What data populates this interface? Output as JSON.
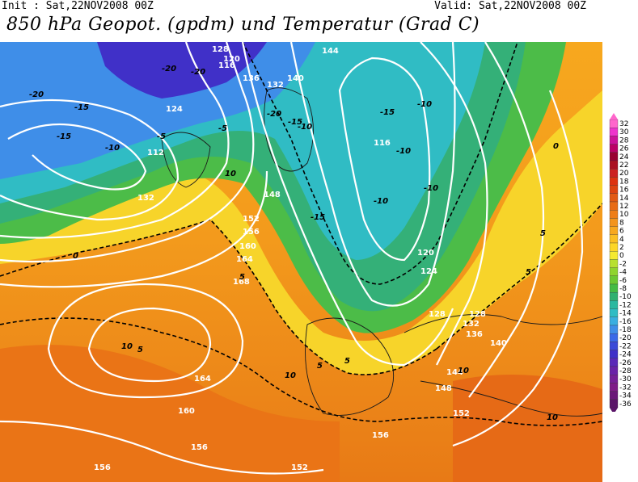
{
  "header": {
    "init": "Init : Sat,22NOV2008 00Z",
    "valid": "Valid: Sat,22NOV2008 00Z",
    "title": "850 hPa Geopot. (gpdm) und Temperatur (Grad C)"
  },
  "scale": {
    "labels": [
      "32",
      "30",
      "28",
      "26",
      "24",
      "22",
      "20",
      "18",
      "16",
      "14",
      "12",
      "10",
      "8",
      "6",
      "4",
      "2",
      "0",
      "-2",
      "-4",
      "-6",
      "-8",
      "-10",
      "-12",
      "-14",
      "-16",
      "-18",
      "-20",
      "-22",
      "-24",
      "-26",
      "-28",
      "-30",
      "-32",
      "-34",
      "-36"
    ],
    "colors": [
      "#ff66cc",
      "#ee33cc",
      "#cc1199",
      "#bb0066",
      "#990033",
      "#aa1122",
      "#cc2222",
      "#dd3311",
      "#dd4411",
      "#e25a14",
      "#e86c16",
      "#ee7e18",
      "#f3941c",
      "#f7a81e",
      "#fbbf22",
      "#fdd628",
      "#f4ea30",
      "#b8e030",
      "#8fd42e",
      "#6cc832",
      "#44bb44",
      "#30b070",
      "#2cb8a0",
      "#30bcc4",
      "#3aaee0",
      "#3f8ee8",
      "#3a6ae8",
      "#3b4bd8",
      "#4030c8",
      "#5a28b8",
      "#6a22a8",
      "#762098",
      "#7e1c88",
      "#6a1878",
      "#5a1468"
    ]
  },
  "map": {
    "isohypse_labels": [
      "128",
      "120",
      "116",
      "136",
      "132",
      "140",
      "144",
      "124",
      "112",
      "132",
      "148",
      "152",
      "156",
      "160",
      "164",
      "168",
      "156",
      "128",
      "132",
      "136",
      "140",
      "144",
      "148",
      "152",
      "156",
      "160",
      "164",
      "156",
      "152",
      "116",
      "120",
      "124",
      "128"
    ],
    "temp_labels": [
      "-20",
      "-20",
      "-20",
      "-15",
      "-15",
      "-10",
      "-5",
      "-5",
      "0",
      "5",
      "10",
      "10",
      "5",
      "5",
      "-15",
      "-20",
      "-10",
      "-15",
      "-10",
      "-10",
      "-10",
      "-10",
      "0",
      "5",
      "10",
      "10",
      "5",
      "-15",
      "5",
      "10"
    ]
  }
}
